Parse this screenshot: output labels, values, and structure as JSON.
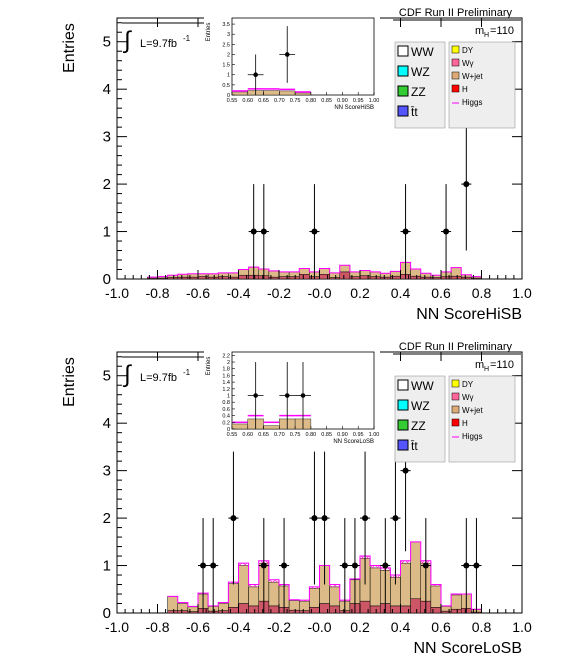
{
  "chart_data": [
    {
      "type": "bar",
      "id": "top",
      "header": "CDF Run II Preliminary",
      "ylabel": "Entries",
      "xlabel": "NN ScoreHiSB",
      "lumi": "L=9.7fb",
      "lumi_sup": "-1",
      "integral_symbol": "∫",
      "mass_label": "m",
      "mass_sub": "H",
      "mass_value": "=110",
      "xlim": [
        -1.0,
        1.0
      ],
      "ylim": [
        0,
        5.5
      ],
      "xticks": [
        "-1.0",
        "-0.8",
        "-0.6",
        "-0.4",
        "-0.2",
        "-0.0",
        "0.2",
        "0.4",
        "0.6",
        "0.8",
        "1.0"
      ],
      "yticks": [
        "0",
        "1",
        "2",
        "3",
        "4",
        "5"
      ],
      "bins": [
        -0.85,
        -0.8,
        -0.75,
        -0.7,
        -0.65,
        -0.6,
        -0.55,
        -0.5,
        -0.45,
        -0.4,
        -0.35,
        -0.3,
        -0.25,
        -0.2,
        -0.15,
        -0.1,
        -0.05,
        0.0,
        0.05,
        0.1,
        0.15,
        0.2,
        0.25,
        0.3,
        0.35,
        0.4,
        0.45,
        0.5,
        0.55,
        0.6,
        0.65,
        0.7,
        0.75,
        0.8
      ],
      "bkg_wjet": [
        0.02,
        0.03,
        0.05,
        0.06,
        0.07,
        0.06,
        0.07,
        0.08,
        0.09,
        0.12,
        0.17,
        0.14,
        0.13,
        0.1,
        0.1,
        0.12,
        0.1,
        0.12,
        0.1,
        0.14,
        0.1,
        0.11,
        0.1,
        0.08,
        0.1,
        0.25,
        0.15,
        0.08,
        0.05,
        0.1,
        0.18,
        0.05,
        0.03
      ],
      "bkg_other": [
        0.02,
        0.02,
        0.03,
        0.04,
        0.04,
        0.05,
        0.04,
        0.05,
        0.04,
        0.08,
        0.08,
        0.07,
        0.04,
        0.05,
        0.05,
        0.1,
        0.05,
        0.1,
        0.03,
        0.15,
        0.05,
        0.07,
        0.05,
        0.04,
        0.06,
        0.1,
        0.06,
        0.04,
        0.03,
        0.05,
        0.06,
        0.04,
        0.02
      ],
      "signal_line": [
        0.04,
        0.05,
        0.08,
        0.1,
        0.11,
        0.11,
        0.11,
        0.13,
        0.13,
        0.2,
        0.25,
        0.21,
        0.17,
        0.15,
        0.15,
        0.22,
        0.15,
        0.22,
        0.13,
        0.29,
        0.15,
        0.18,
        0.15,
        0.12,
        0.16,
        0.35,
        0.21,
        0.12,
        0.08,
        0.15,
        0.24,
        0.09,
        0.05
      ],
      "data_x": [
        -0.325,
        -0.275,
        -0.025,
        0.425,
        0.625,
        0.725
      ],
      "data_y": [
        1,
        1,
        1,
        1,
        1,
        2
      ],
      "data_err": [
        1,
        1,
        1,
        1,
        1,
        1.4
      ],
      "data_xerr": 0.025,
      "legend": [
        "WW",
        "WZ",
        "ZZ",
        "t̄t",
        "DY",
        "Wγ",
        "W+jet",
        "H",
        "Higgs"
      ],
      "legend_colors": [
        "#ffffff",
        "#00ffff",
        "#33cc33",
        "#5555ff",
        "#ffff00",
        "#ff6699",
        "#ddaa77",
        "#ff0000",
        "#ff00ff"
      ],
      "inset": {
        "ylabel": "Entries",
        "xlabel": "NN ScoreHiSB",
        "xlim": [
          0.55,
          1.0
        ],
        "ylim": [
          0,
          3.8
        ],
        "xticks": [
          "0.55",
          "0.60",
          "0.65",
          "0.70",
          "0.75",
          "0.80",
          "0.85",
          "0.90",
          "0.95",
          "1.00"
        ],
        "yticks": [
          "0",
          "0.5",
          "1",
          "1.5",
          "2",
          "2.5",
          "3",
          "3.5"
        ],
        "data_x": [
          0.625,
          0.725
        ],
        "data_y": [
          1,
          2
        ],
        "data_err": [
          1,
          1.4
        ],
        "data_xerr": 0.025,
        "bkg_bins": [
          0.55,
          0.6,
          0.65,
          0.7,
          0.75,
          0.8
        ],
        "bkg_values": [
          0.15,
          0.22,
          0.22,
          0.2,
          0.1
        ],
        "signal_values": [
          0.2,
          0.3,
          0.3,
          0.28,
          0.15
        ]
      }
    },
    {
      "type": "bar",
      "id": "bottom",
      "header": "CDF Run II Preliminary",
      "ylabel": "Entries",
      "xlabel": "NN ScoreLoSB",
      "lumi": "L=9.7fb",
      "lumi_sup": "-1",
      "integral_symbol": "∫",
      "mass_label": "m",
      "mass_sub": "H",
      "mass_value": "=110",
      "xlim": [
        -1.0,
        1.0
      ],
      "ylim": [
        0,
        5.5
      ],
      "xticks": [
        "-1.0",
        "-0.8",
        "-0.6",
        "-0.4",
        "-0.2",
        "-0.0",
        "0.2",
        "0.4",
        "0.6",
        "0.8",
        "1.0"
      ],
      "yticks": [
        "0",
        "1",
        "2",
        "3",
        "4",
        "5"
      ],
      "bins": [
        -0.75,
        -0.7,
        -0.65,
        -0.6,
        -0.55,
        -0.5,
        -0.45,
        -0.4,
        -0.35,
        -0.3,
        -0.25,
        -0.2,
        -0.15,
        -0.1,
        -0.05,
        0.0,
        0.05,
        0.1,
        0.15,
        0.2,
        0.25,
        0.3,
        0.35,
        0.4,
        0.45,
        0.5,
        0.55,
        0.6,
        0.65,
        0.7,
        0.75,
        0.8
      ],
      "bkg_wjet": [
        0.3,
        0.15,
        0.1,
        0.3,
        0.1,
        0.15,
        0.5,
        0.8,
        0.4,
        0.8,
        0.5,
        0.45,
        0.2,
        0.2,
        0.4,
        0.8,
        0.4,
        0.2,
        0.5,
        0.9,
        0.8,
        0.7,
        0.6,
        0.9,
        1.2,
        0.8,
        0.45,
        0.1,
        0.3,
        0.3,
        0.05
      ],
      "bkg_other": [
        0.05,
        0.05,
        0.03,
        0.1,
        0.04,
        0.05,
        0.12,
        0.2,
        0.15,
        0.25,
        0.15,
        0.12,
        0.06,
        0.05,
        0.12,
        0.2,
        0.15,
        0.05,
        0.2,
        0.25,
        0.15,
        0.2,
        0.15,
        0.15,
        0.3,
        0.25,
        0.12,
        0.04,
        0.08,
        0.1,
        0.02
      ],
      "signal_line": [
        0.35,
        0.22,
        0.14,
        0.42,
        0.15,
        0.22,
        0.65,
        1.05,
        0.6,
        1.1,
        0.7,
        0.6,
        0.28,
        0.27,
        0.55,
        1.0,
        0.6,
        0.27,
        0.72,
        1.2,
        1.0,
        0.95,
        0.8,
        1.1,
        1.5,
        1.1,
        0.6,
        0.15,
        0.4,
        0.4,
        0.08
      ],
      "data_x": [
        -0.575,
        -0.525,
        -0.425,
        -0.275,
        -0.175,
        -0.025,
        0.025,
        0.125,
        0.175,
        0.225,
        0.325,
        0.375,
        0.425,
        0.525,
        0.725,
        0.775
      ],
      "data_y": [
        1,
        1,
        2,
        1,
        1,
        2,
        2,
        1,
        1,
        2,
        1,
        2,
        3,
        1,
        1,
        1
      ],
      "data_err": [
        1,
        1,
        1.4,
        1,
        1,
        1.4,
        1.4,
        1,
        1,
        1.4,
        1,
        1.4,
        1.7,
        1,
        1,
        1
      ],
      "data_xerr": 0.025,
      "legend": [
        "WW",
        "WZ",
        "ZZ",
        "t̄t",
        "DY",
        "Wγ",
        "W+jet",
        "H",
        "Higgs"
      ],
      "legend_colors": [
        "#ffffff",
        "#00ffff",
        "#33cc33",
        "#5555ff",
        "#ffff00",
        "#ff6699",
        "#ddaa77",
        "#ff0000",
        "#ff00ff"
      ],
      "inset": {
        "ylabel": "Entries",
        "xlabel": "NN ScoreLoSB",
        "xlim": [
          0.55,
          1.0
        ],
        "ylim": [
          0,
          2.3
        ],
        "xticks": [
          "0.55",
          "0.60",
          "0.65",
          "0.70",
          "0.75",
          "0.80",
          "0.85",
          "0.90",
          "0.95",
          "1.00"
        ],
        "yticks": [
          "0",
          "0.2",
          "0.4",
          "0.6",
          "0.8",
          "1",
          "1.2",
          "1.4",
          "1.6",
          "1.8",
          "2",
          "2.2"
        ],
        "data_x": [
          0.625,
          0.725,
          0.775
        ],
        "data_y": [
          1,
          1,
          1
        ],
        "data_err": [
          1,
          1,
          1
        ],
        "data_xerr": 0.025,
        "bkg_bins": [
          0.55,
          0.6,
          0.65,
          0.7,
          0.75,
          0.8
        ],
        "bkg_values": [
          0.15,
          0.3,
          0.1,
          0.3,
          0.3
        ],
        "signal_values": [
          0.2,
          0.4,
          0.2,
          0.4,
          0.4
        ]
      }
    }
  ]
}
